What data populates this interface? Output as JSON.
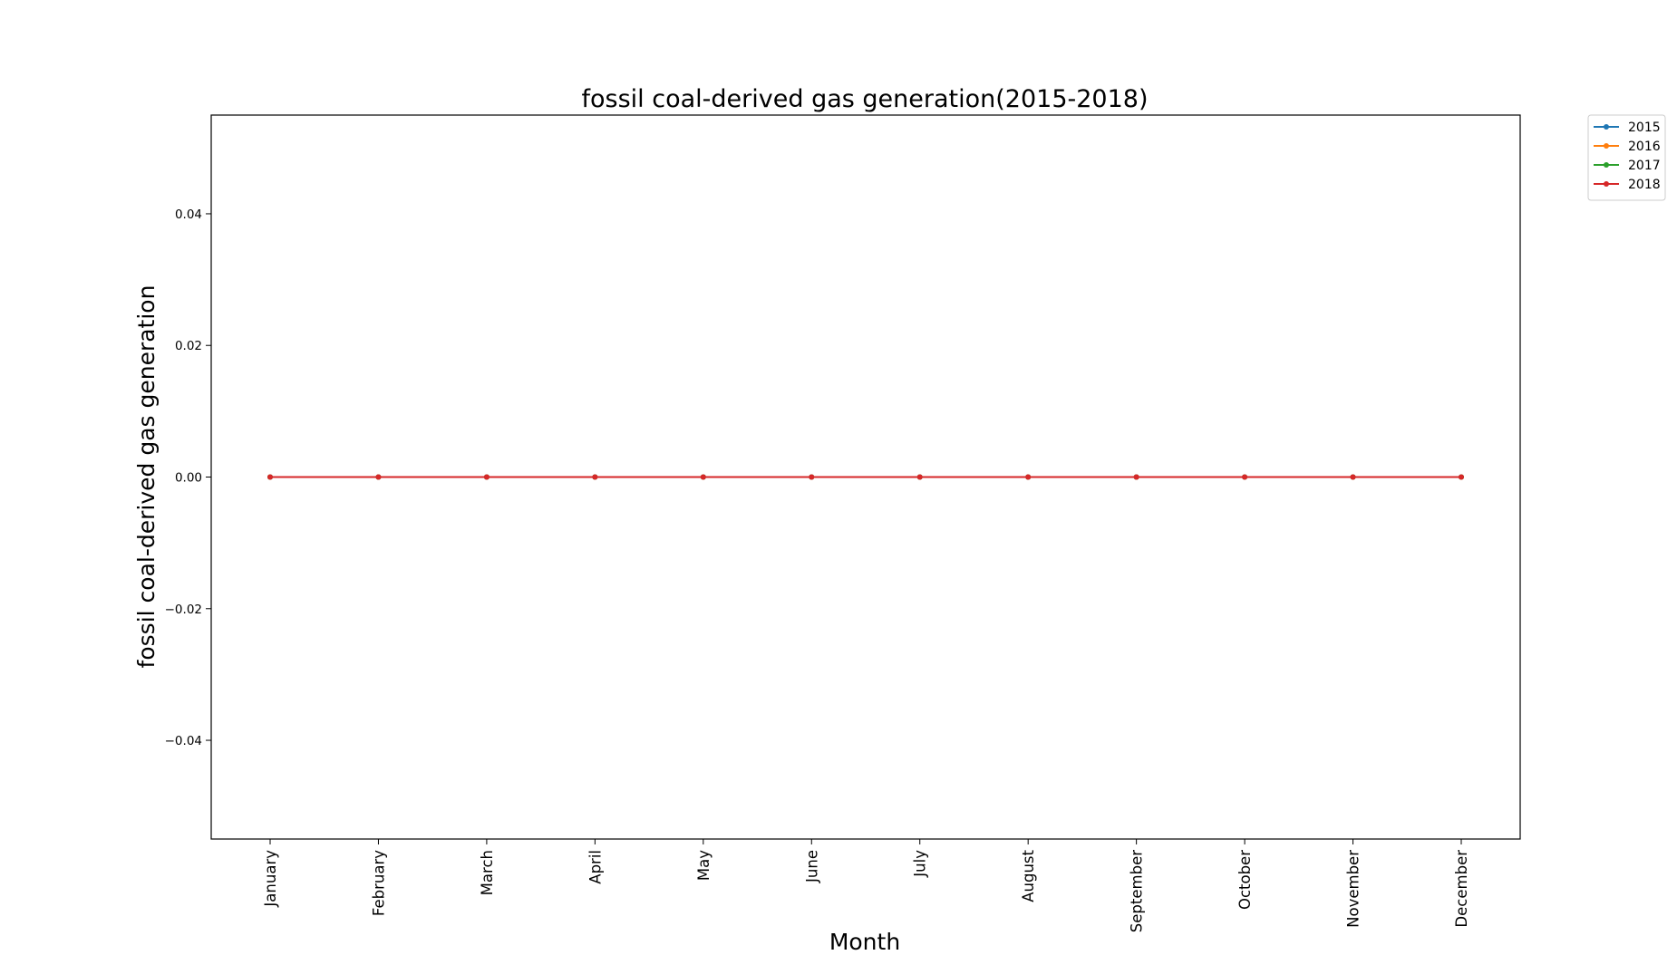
{
  "chart_data": {
    "type": "line",
    "title": "fossil coal-derived gas generation(2015-2018)",
    "xlabel": "Month",
    "ylabel": "fossil coal-derived gas generation",
    "categories": [
      "January",
      "February",
      "March",
      "April",
      "May",
      "June",
      "July",
      "August",
      "September",
      "October",
      "November",
      "December"
    ],
    "ylim": [
      -0.055,
      0.055
    ],
    "yticks": [
      -0.04,
      -0.02,
      0.0,
      0.02,
      0.04
    ],
    "ytick_labels": [
      "−0.04",
      "−0.02",
      "0.00",
      "0.02",
      "0.04"
    ],
    "grid": false,
    "legend_position": "upper-right-outside",
    "series": [
      {
        "name": "2015",
        "color": "#1f77b4",
        "values": [
          0,
          0,
          0,
          0,
          0,
          0,
          0,
          0,
          0,
          0,
          0,
          0
        ]
      },
      {
        "name": "2016",
        "color": "#ff7f0e",
        "values": [
          0,
          0,
          0,
          0,
          0,
          0,
          0,
          0,
          0,
          0,
          0,
          0
        ]
      },
      {
        "name": "2017",
        "color": "#2ca02c",
        "values": [
          0,
          0,
          0,
          0,
          0,
          0,
          0,
          0,
          0,
          0,
          0,
          0
        ]
      },
      {
        "name": "2018",
        "color": "#d62728",
        "values": [
          0,
          0,
          0,
          0,
          0,
          0,
          0,
          0,
          0,
          0,
          0,
          0
        ]
      }
    ]
  }
}
